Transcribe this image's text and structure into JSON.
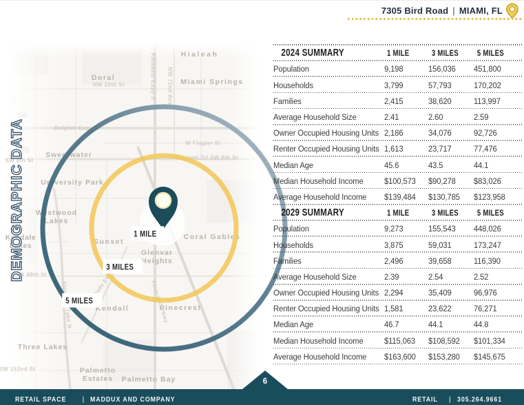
{
  "header": {
    "address": "7305 Bird Road",
    "separator": "|",
    "city": "MIAMI, FL"
  },
  "sidebar_title": "DEMOGRAPHIC DATA",
  "map": {
    "radius_labels": [
      "1 MILE",
      "3 MILES",
      "5 MILES"
    ],
    "places": [
      "Hialeah",
      "Doral",
      "Miami Springs",
      "Sweetwater",
      "University Park",
      "Westwood Lakes",
      "Kendale Lakes",
      "Sunset",
      "Coral Gables",
      "Glenvar Heights",
      "Kendall",
      "Pinecrest",
      "Three Lakes",
      "Palmetto Estates",
      "Palmetto Bay"
    ],
    "roads": [
      "NW 25th St",
      "Dolphin Expy W",
      "W Flagler St",
      "Tamiami Trl  SW 8th St",
      "SW 8th St",
      "SW 88th St",
      "SW 152nd St",
      "Florida's Tpke N",
      "Palmetto Expy S",
      "NW 72nd Ave",
      "Pinecrest Pkwy",
      "Dade Expy"
    ],
    "colors": {
      "ring_1_mile": "#FFFFFF",
      "ring_3_miles": "#F2C75B",
      "ring_5_miles": "#215468",
      "pin": "#1C4B5A",
      "accent_gold": "#E2B94E"
    }
  },
  "tables": [
    {
      "title": "2024 SUMMARY",
      "columns": [
        "1 MILE",
        "3 MILES",
        "5 MILES"
      ],
      "rows": [
        [
          "Population",
          "9,198",
          "156,036",
          "451,800"
        ],
        [
          "Households",
          "3,799",
          "57,793",
          "170,202"
        ],
        [
          "Families",
          "2,415",
          "38,620",
          "113,997"
        ],
        [
          "Average Household Size",
          "2.41",
          "2.60",
          "2.59"
        ],
        [
          "Owner Occupied Housing Units",
          "2,186",
          "34,076",
          "92,726"
        ],
        [
          "Renter Occupied Housing Units",
          "1,613",
          "23,717",
          "77,476"
        ],
        [
          "Median Age",
          "45.6",
          "43.5",
          "44.1"
        ],
        [
          "Median Household Income",
          "$100,573",
          "$90,278",
          "$83,026"
        ],
        [
          "Average Household Income",
          "$139,484",
          "$130,785",
          "$123,958"
        ]
      ]
    },
    {
      "title": "2029 SUMMARY",
      "columns": [
        "1 MILE",
        "3 MILES",
        "5 MILES"
      ],
      "rows": [
        [
          "Population",
          "9,273",
          "155,543",
          "448,026"
        ],
        [
          "Households",
          "3,875",
          "59,031",
          "173,247"
        ],
        [
          "Families",
          "2,496",
          "39,658",
          "116,390"
        ],
        [
          "Average Household Size",
          "2.39",
          "2.54",
          "2.52"
        ],
        [
          "Owner Occupied Housing Units",
          "2,294",
          "35,409",
          "96,976"
        ],
        [
          "Renter Occupied Housing Units",
          "1,581",
          "23,622",
          "76,271"
        ],
        [
          "Median Age",
          "46.7",
          "44.1",
          "44.8"
        ],
        [
          "Median Household Income",
          "$115,063",
          "$108,592",
          "$101,334"
        ],
        [
          "Average Household Income",
          "$163,600",
          "$153,280",
          "$145,675"
        ]
      ]
    }
  ],
  "footer": {
    "left_label": "RETAIL SPACE",
    "separator": "|",
    "company": "MADDUX AND COMPANY",
    "right_label": "RETAIL",
    "phone": "305.264.9661",
    "page_number": "6"
  }
}
